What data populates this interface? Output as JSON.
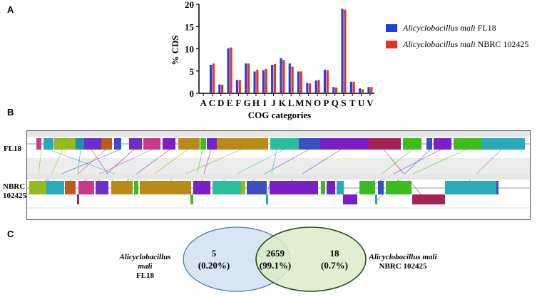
{
  "panels": {
    "a": "A",
    "b": "B",
    "c": "C"
  },
  "chart_data": {
    "type": "bar",
    "title": "",
    "xlabel": "COG categories",
    "ylabel": "% CDS",
    "ylim": [
      0,
      20
    ],
    "yticks": [
      0,
      5,
      10,
      15,
      20
    ],
    "categories": [
      "A",
      "C",
      "D",
      "E",
      "F",
      "G",
      "H",
      "I",
      "J",
      "K",
      "L",
      "M",
      "N",
      "O",
      "P",
      "Q",
      "S",
      "T",
      "U",
      "V"
    ],
    "series": [
      {
        "name_italic": "Alicyclobacillus mali",
        "name_suffix": " FL18",
        "color": "#1f3fe0",
        "values": [
          0,
          6.4,
          2.0,
          10.1,
          3.0,
          6.7,
          4.9,
          5.2,
          6.4,
          7.9,
          6.7,
          4.9,
          2.3,
          2.9,
          5.3,
          1.4,
          19.0,
          2.6,
          1.1,
          1.4
        ]
      },
      {
        "name_italic": "Alicyclobacillus mali",
        "name_suffix": " NBRC 102425",
        "color": "#e8321e",
        "values": [
          0,
          6.7,
          1.9,
          10.3,
          3.0,
          6.7,
          5.3,
          5.5,
          6.6,
          7.5,
          6.0,
          4.9,
          2.2,
          3.0,
          5.2,
          1.3,
          18.8,
          2.6,
          0.9,
          1.4
        ]
      }
    ]
  },
  "mauve": {
    "genome1": "FL18",
    "genome2_line1": "NBRC",
    "genome2_line2": "102425",
    "colors": [
      "#97b81f",
      "#1e8fb2",
      "#6c2fc6",
      "#b95a1e",
      "#c73a8a",
      "#3b4fc2",
      "#b88a17",
      "#2bbd9c",
      "#a32454",
      "#3cbd1d",
      "#7b1ec6",
      "#2aa9b8"
    ]
  },
  "venn": {
    "left_name": "Alicyclobacillus mali",
    "left_strain": "FL18",
    "right_name": "Alicyclobacillus mali",
    "right_strain": "NBRC 102425",
    "left_only": "5",
    "left_only_pct": "(0.20%)",
    "shared": "2659",
    "shared_pct": "(99.1%)",
    "right_only": "18",
    "right_only_pct": "(0.7%)",
    "left_color": "#d6e6f5",
    "right_color": "#dcebc7"
  }
}
